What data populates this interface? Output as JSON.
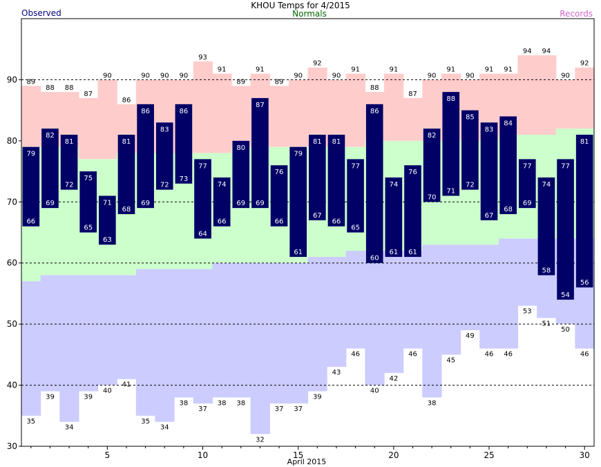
{
  "colors": {
    "record": "#ffcccc",
    "normal": "#ccffcc",
    "low_record": "#ccccff",
    "observed_bar": "#000066",
    "observed_label": "#000080",
    "normals_label": "#006600",
    "records_label": "#cc66cc",
    "grid": "#000000"
  },
  "chart_data": {
    "type": "bar",
    "title": "KHOU Temps for 4/2015",
    "xlabel": "April 2015",
    "ylabel": "",
    "legend": [
      "Observed",
      "Normals",
      "Records"
    ],
    "legend_placement": "top",
    "ylim": [
      30,
      100
    ],
    "xlim": [
      1,
      30
    ],
    "yticks": [
      30,
      40,
      50,
      60,
      70,
      80,
      90
    ],
    "xticks": [
      5,
      10,
      15,
      20,
      25,
      30
    ],
    "grid": "dotted horizontal at 40, 50, 60, 70, 90",
    "days": [
      1,
      2,
      3,
      4,
      5,
      6,
      7,
      8,
      9,
      10,
      11,
      12,
      13,
      14,
      15,
      16,
      17,
      18,
      19,
      20,
      21,
      22,
      23,
      24,
      25,
      26,
      27,
      28,
      29,
      30
    ],
    "record_high": [
      89,
      88,
      88,
      87,
      90,
      86,
      90,
      90,
      90,
      93,
      91,
      89,
      91,
      89,
      90,
      92,
      90,
      91,
      88,
      91,
      87,
      90,
      91,
      90,
      91,
      91,
      94,
      94,
      90,
      92
    ],
    "record_low": [
      35,
      39,
      34,
      39,
      40,
      41,
      35,
      34,
      38,
      37,
      38,
      38,
      32,
      37,
      37,
      39,
      43,
      46,
      40,
      42,
      46,
      38,
      45,
      49,
      46,
      46,
      53,
      51,
      50,
      46
    ],
    "normal_high": [
      79,
      79,
      79,
      77,
      77,
      78,
      78,
      78,
      78,
      78,
      78,
      79,
      79,
      79,
      79,
      79,
      79,
      79,
      80,
      80,
      80,
      80,
      80,
      80,
      80,
      81,
      81,
      81,
      82,
      82
    ],
    "normal_low": [
      57,
      58,
      58,
      58,
      58,
      58,
      59,
      59,
      59,
      59,
      60,
      60,
      60,
      60,
      60,
      61,
      61,
      62,
      62,
      62,
      62,
      63,
      63,
      63,
      63,
      64,
      64,
      64,
      64,
      64
    ],
    "observed_high": [
      79,
      82,
      81,
      75,
      71,
      81,
      86,
      83,
      86,
      77,
      74,
      80,
      87,
      76,
      79,
      81,
      81,
      77,
      86,
      74,
      76,
      82,
      88,
      85,
      83,
      84,
      77,
      74,
      77,
      81
    ],
    "observed_low": [
      66,
      69,
      72,
      65,
      63,
      68,
      69,
      72,
      73,
      64,
      66,
      69,
      69,
      66,
      61,
      67,
      66,
      65,
      60,
      61,
      61,
      70,
      71,
      72,
      67,
      68,
      69,
      58,
      54,
      56
    ]
  }
}
